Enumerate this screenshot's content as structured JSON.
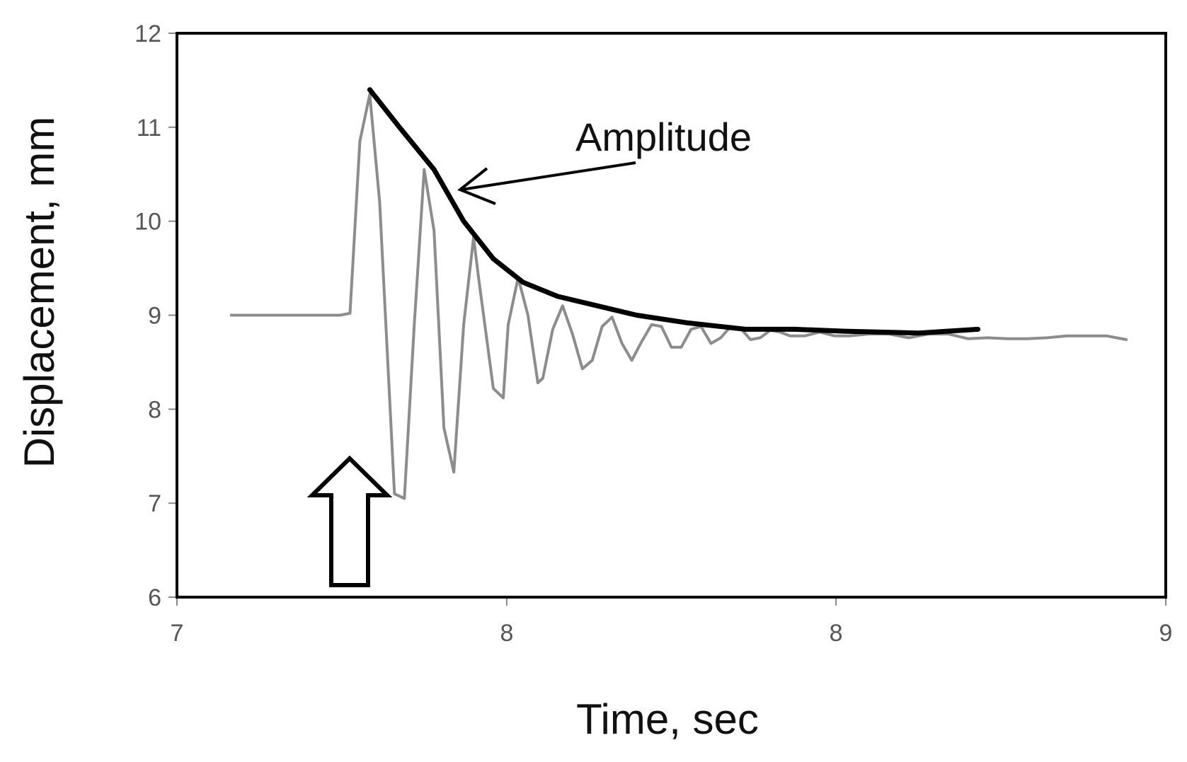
{
  "chart_data": {
    "type": "line",
    "xlabel": "Time, sec",
    "ylabel": "Displacement, mm",
    "xlim": [
      7,
      9
    ],
    "ylim": [
      6,
      12
    ],
    "x_ticks": [
      {
        "value": 7,
        "label": "7"
      },
      {
        "value": 7.667,
        "label": "8"
      },
      {
        "value": 8.333,
        "label": "8"
      },
      {
        "value": 9,
        "label": "9"
      }
    ],
    "y_ticks": [
      6,
      7,
      8,
      9,
      10,
      11,
      12
    ],
    "grid": false,
    "legend": "none",
    "series": [
      {
        "role": "displacement",
        "color": "#8c8c8c",
        "x": [
          7.11,
          7.33,
          7.35,
          7.37,
          7.39,
          7.41,
          7.44,
          7.46,
          7.48,
          7.5,
          7.52,
          7.54,
          7.56,
          7.58,
          7.6,
          7.61,
          7.64,
          7.66,
          7.67,
          7.69,
          7.71,
          7.73,
          7.74,
          7.76,
          7.78,
          7.8,
          7.82,
          7.84,
          7.86,
          7.88,
          7.9,
          7.92,
          7.94,
          7.96,
          7.98,
          8.0,
          8.02,
          8.04,
          8.06,
          8.08,
          8.1,
          8.12,
          8.14,
          8.16,
          8.18,
          8.2,
          8.22,
          8.24,
          8.27,
          8.3,
          8.33,
          8.36,
          8.4,
          8.44,
          8.48,
          8.52,
          8.56,
          8.6,
          8.64,
          8.68,
          8.72,
          8.76,
          8.8,
          8.84,
          8.88,
          8.92
        ],
        "y": [
          9.0,
          9.0,
          9.02,
          10.85,
          11.35,
          10.2,
          7.1,
          7.05,
          8.9,
          10.55,
          9.9,
          7.8,
          7.33,
          8.9,
          9.83,
          9.4,
          8.22,
          8.12,
          8.9,
          9.4,
          9.0,
          8.28,
          8.33,
          8.85,
          9.1,
          8.8,
          8.43,
          8.52,
          8.88,
          8.98,
          8.7,
          8.52,
          8.72,
          8.9,
          8.88,
          8.66,
          8.66,
          8.85,
          8.88,
          8.7,
          8.76,
          8.88,
          8.86,
          8.74,
          8.76,
          8.84,
          8.82,
          8.78,
          8.78,
          8.82,
          8.78,
          8.78,
          8.8,
          8.8,
          8.76,
          8.8,
          8.8,
          8.75,
          8.76,
          8.75,
          8.75,
          8.76,
          8.78,
          8.78,
          8.78,
          8.74
        ]
      },
      {
        "role": "amplitude-envelope",
        "color": "#000000",
        "x": [
          7.39,
          7.45,
          7.52,
          7.58,
          7.64,
          7.7,
          7.77,
          7.85,
          7.93,
          8.03,
          8.15,
          8.25,
          8.35,
          8.5,
          8.62
        ],
        "y": [
          11.4,
          11.0,
          10.55,
          10.0,
          9.6,
          9.35,
          9.2,
          9.1,
          9.0,
          8.92,
          8.85,
          8.85,
          8.83,
          8.81,
          8.85
        ]
      }
    ],
    "annotations": [
      {
        "text": "Amplitude"
      }
    ]
  }
}
